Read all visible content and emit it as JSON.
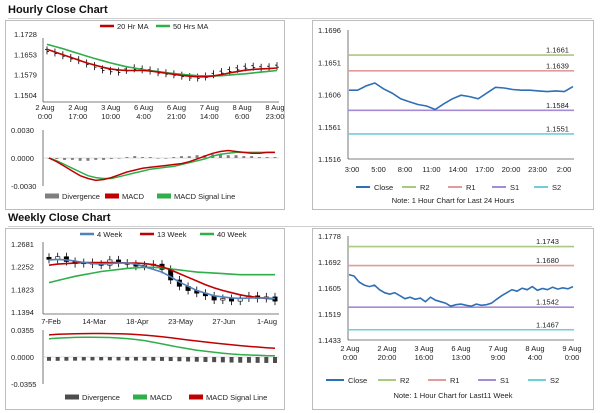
{
  "hourly": {
    "title": "Hourly Close Chart",
    "price": {
      "legend": [
        {
          "name": "20 Hr MA",
          "color": "#c00000"
        },
        {
          "name": "50 Hrs MA",
          "color": "#2fae4a"
        }
      ],
      "y_ticks": [
        "1.1728",
        "1.1653",
        "1.1579",
        "1.1504"
      ],
      "x_ticks": [
        {
          "top": "2 Aug",
          "bottom": "0:00"
        },
        {
          "top": "2 Aug",
          "bottom": "17:00"
        },
        {
          "top": "3 Aug",
          "bottom": "10:00"
        },
        {
          "top": "6 Aug",
          "bottom": "4:00"
        },
        {
          "top": "6 Aug",
          "bottom": "21:00"
        },
        {
          "top": "7 Aug",
          "bottom": "14:00"
        },
        {
          "top": "8 Aug",
          "bottom": "6:00"
        },
        {
          "top": "8 Aug",
          "bottom": "23:00"
        }
      ]
    },
    "macd": {
      "y_ticks": [
        "0.0030",
        "0.0000",
        "-0.0030"
      ],
      "legend": [
        {
          "name": "Divergence",
          "color": "#7f7f7f"
        },
        {
          "name": "MACD",
          "color": "#c00000"
        },
        {
          "name": "MACD Signal Line",
          "color": "#2fae4a"
        }
      ]
    },
    "right_chart": {
      "y_ticks": [
        "1.1696",
        "1.1651",
        "1.1606",
        "1.1561",
        "1.1516"
      ],
      "x_ticks": [
        "3:00",
        "5:00",
        "8:00",
        "11:00",
        "14:00",
        "17:00",
        "20:00",
        "23:00",
        "2:00"
      ],
      "level_labels": [
        "1.1661",
        "1.1639",
        "1.1584",
        "1.1551"
      ],
      "legend": [
        {
          "name": "Close",
          "color": "#2f6fb4"
        },
        {
          "name": "R2",
          "color": "#a8c97f"
        },
        {
          "name": "R1",
          "color": "#e39a9a"
        },
        {
          "name": "S1",
          "color": "#a58ad6"
        },
        {
          "name": "S2",
          "color": "#6fcfd6"
        }
      ],
      "note": "Note: 1 Hour Chart for Last 24 Hours"
    }
  },
  "weekly": {
    "title": "Weekly Close Chart",
    "price": {
      "legend": [
        {
          "name": "4 Week",
          "color": "#4f81bd"
        },
        {
          "name": "13 Week",
          "color": "#c00000"
        },
        {
          "name": "40 Week",
          "color": "#2fae4a"
        }
      ],
      "y_ticks": [
        "1.2681",
        "1.2252",
        "1.1823",
        "1.1394"
      ],
      "x_ticks": [
        "7-Feb",
        "14-Mar",
        "18-Apr",
        "23-May",
        "27-Jun",
        "1-Aug"
      ]
    },
    "macd": {
      "y_ticks": [
        "0.0355",
        "0.0000",
        "-0.0355"
      ],
      "legend": [
        {
          "name": "Divergence",
          "color": "#4d4d4d"
        },
        {
          "name": "MACD",
          "color": "#2fae4a"
        },
        {
          "name": "MACD Signal Line",
          "color": "#c00000"
        }
      ]
    },
    "right_chart": {
      "y_ticks": [
        "1.1778",
        "1.1692",
        "1.1605",
        "1.1519",
        "1.1433"
      ],
      "x_ticks": [
        {
          "top": "2 Aug",
          "bottom": "0:00"
        },
        {
          "top": "2 Aug",
          "bottom": "20:00"
        },
        {
          "top": "3 Aug",
          "bottom": "16:00"
        },
        {
          "top": "6 Aug",
          "bottom": "13:00"
        },
        {
          "top": "7 Aug",
          "bottom": "9:00"
        },
        {
          "top": "8 Aug",
          "bottom": "4:00"
        },
        {
          "top": "9 Aug",
          "bottom": "0:00"
        }
      ],
      "level_labels": [
        "1.1743",
        "1.1680",
        "1.1542",
        "1.1467"
      ],
      "legend": [
        {
          "name": "Close",
          "color": "#2f6fb4"
        },
        {
          "name": "R2",
          "color": "#a8c97f"
        },
        {
          "name": "R1",
          "color": "#e39a9a"
        },
        {
          "name": "S1",
          "color": "#a58ad6"
        },
        {
          "name": "S2",
          "color": "#6fcfd6"
        }
      ],
      "note": "Note: 1 Hour Chart for Last11 Week"
    }
  },
  "chart_data": [
    {
      "id": "hourly-price",
      "type": "line",
      "title": "Hourly Close Chart",
      "ylim": [
        1.1504,
        1.1728
      ],
      "series": [
        {
          "name": "Close (OHLC bars)",
          "values": [
            1.1668,
            1.166,
            1.165,
            1.164,
            1.1632,
            1.162,
            1.161,
            1.1598,
            1.1593,
            1.159,
            1.1596,
            1.1602,
            1.1598,
            1.1594,
            1.1588,
            1.1584,
            1.158,
            1.1575,
            1.157,
            1.1568,
            1.1572,
            1.158,
            1.1588,
            1.1594,
            1.16,
            1.1606,
            1.1608,
            1.1604,
            1.1606,
            1.161
          ]
        },
        {
          "name": "20 Hr MA",
          "values": [
            1.1672,
            1.1662,
            1.1652,
            1.1642,
            1.1632,
            1.1622,
            1.1614,
            1.1606,
            1.16,
            1.1596,
            1.1594,
            1.1594,
            1.1594,
            1.1592,
            1.1588,
            1.1584,
            1.158,
            1.1576,
            1.1573,
            1.1571,
            1.1571,
            1.1574,
            1.1579,
            1.1585,
            1.159,
            1.1595,
            1.1598,
            1.16,
            1.1601,
            1.1603
          ]
        },
        {
          "name": "50 Hrs MA",
          "values": [
            1.169,
            1.1682,
            1.1674,
            1.1665,
            1.1656,
            1.1647,
            1.1638,
            1.163,
            1.1622,
            1.1615,
            1.1608,
            1.1603,
            1.1598,
            1.1594,
            1.159,
            1.1586,
            1.1583,
            1.158,
            1.1577,
            1.1575,
            1.1574,
            1.1574,
            1.1575,
            1.1577,
            1.158,
            1.1582,
            1.1585,
            1.1588,
            1.1591,
            1.1594
          ]
        }
      ]
    },
    {
      "id": "hourly-macd",
      "type": "line",
      "ylim": [
        -0.003,
        0.003
      ],
      "series": [
        {
          "name": "Divergence",
          "values": [
            0.0,
            -0.0001,
            -0.0002,
            -0.0002,
            -0.0003,
            -0.0003,
            -0.0002,
            -0.0002,
            -0.0001,
            0.0,
            0.0001,
            0.0002,
            0.0001,
            0.0001,
            0.0,
            0.0,
            0.0001,
            0.0002,
            0.0002,
            0.0003,
            0.0003,
            0.0004,
            0.0004,
            0.0003,
            0.0003,
            0.0002,
            0.0002,
            0.0001,
            0.0001,
            0.0001
          ]
        },
        {
          "name": "MACD",
          "values": [
            0.0,
            -0.0004,
            -0.0009,
            -0.0014,
            -0.0019,
            -0.0022,
            -0.0024,
            -0.0023,
            -0.0021,
            -0.0018,
            -0.0015,
            -0.0013,
            -0.0011,
            -0.001,
            -0.0009,
            -0.0008,
            -0.0007,
            -0.0006,
            -0.0004,
            -0.0001,
            0.0002,
            0.0005,
            0.0007,
            0.0008,
            0.0007,
            0.0006,
            0.0005,
            0.0005,
            0.0006,
            0.0006
          ]
        },
        {
          "name": "MACD Signal Line",
          "values": [
            0.0,
            -0.0003,
            -0.0007,
            -0.0011,
            -0.0015,
            -0.0019,
            -0.0021,
            -0.0022,
            -0.0022,
            -0.002,
            -0.0018,
            -0.0016,
            -0.0014,
            -0.0012,
            -0.0011,
            -0.001,
            -0.0009,
            -0.0007,
            -0.0005,
            -0.0003,
            -0.0001,
            0.0002,
            0.0004,
            0.0005,
            0.0006,
            0.0006,
            0.0006,
            0.0006,
            0.0006,
            0.0006
          ]
        }
      ]
    },
    {
      "id": "hourly-right",
      "type": "line",
      "ylim": [
        1.1516,
        1.1696
      ],
      "levels": {
        "R2": 1.1661,
        "R1": 1.1639,
        "S1": 1.1584,
        "S2": 1.1551
      },
      "series": [
        {
          "name": "Close",
          "values": [
            1.1612,
            1.1612,
            1.1618,
            1.1622,
            1.1614,
            1.1608,
            1.16,
            1.1596,
            1.1592,
            1.159,
            1.1585,
            1.1593,
            1.16,
            1.1605,
            1.1603,
            1.16,
            1.1608,
            1.1616,
            1.1615,
            1.1613,
            1.1612,
            1.1612,
            1.1611,
            1.161,
            1.1611,
            1.161,
            1.1617
          ]
        }
      ]
    },
    {
      "id": "weekly-price",
      "type": "line",
      "title": "Weekly Close Chart",
      "ylim": [
        1.1394,
        1.2681
      ],
      "series": [
        {
          "name": "Close (candles)",
          "values": [
            1.239,
            1.244,
            1.235,
            1.231,
            1.233,
            1.23,
            1.228,
            1.238,
            1.232,
            1.23,
            1.226,
            1.228,
            1.23,
            1.22,
            1.2,
            1.188,
            1.18,
            1.175,
            1.17,
            1.162,
            1.165,
            1.16,
            1.166,
            1.17,
            1.165,
            1.168,
            1.16
          ]
        },
        {
          "name": "4 Week",
          "values": [
            1.238,
            1.239,
            1.238,
            1.236,
            1.233,
            1.231,
            1.23,
            1.231,
            1.232,
            1.232,
            1.23,
            1.225,
            1.22,
            1.215,
            1.206,
            1.196,
            1.188,
            1.18,
            1.175,
            1.17,
            1.168,
            1.166,
            1.165,
            1.166,
            1.166,
            1.166,
            1.165
          ]
        },
        {
          "name": "13 Week",
          "values": [
            1.228,
            1.23,
            1.231,
            1.232,
            1.233,
            1.233,
            1.233,
            1.233,
            1.233,
            1.232,
            1.232,
            1.231,
            1.229,
            1.225,
            1.219,
            1.212,
            1.205,
            1.198,
            1.191,
            1.185,
            1.18,
            1.176,
            1.172,
            1.169,
            1.167,
            1.165,
            1.164
          ]
        },
        {
          "name": "40 Week",
          "values": [
            1.195,
            1.199,
            1.203,
            1.207,
            1.21,
            1.213,
            1.216,
            1.218,
            1.22,
            1.222,
            1.223,
            1.224,
            1.224,
            1.223,
            1.221,
            1.219,
            1.217,
            1.215,
            1.214,
            1.213,
            1.212,
            1.211,
            1.21,
            1.21,
            1.21,
            1.21,
            1.21
          ]
        }
      ]
    },
    {
      "id": "weekly-macd",
      "type": "line",
      "ylim": [
        -0.0355,
        0.0355
      ],
      "series": [
        {
          "name": "Divergence",
          "values": [
            -0.005,
            -0.005,
            -0.0049,
            -0.0048,
            -0.0046,
            -0.0045,
            -0.0044,
            -0.0044,
            -0.0045,
            -0.0046,
            -0.0047,
            -0.0048,
            -0.0049,
            -0.0051,
            -0.0053,
            -0.0056,
            -0.0059,
            -0.0062,
            -0.0065,
            -0.0068,
            -0.0071,
            -0.0073,
            -0.0075,
            -0.0076,
            -0.0077,
            -0.0078,
            -0.0079
          ]
        },
        {
          "name": "MACD",
          "values": [
            0.024,
            0.0248,
            0.0254,
            0.0258,
            0.026,
            0.026,
            0.0258,
            0.0256,
            0.025,
            0.0242,
            0.023,
            0.0215,
            0.0195,
            0.0172,
            0.015,
            0.0128,
            0.0108,
            0.009,
            0.0075,
            0.0062,
            0.005,
            0.004,
            0.0032,
            0.0026,
            0.0022,
            0.0019,
            0.0017
          ]
        },
        {
          "name": "MACD Signal Line",
          "values": [
            0.029,
            0.0298,
            0.0302,
            0.0306,
            0.0308,
            0.0309,
            0.0309,
            0.0308,
            0.0306,
            0.0302,
            0.0296,
            0.0288,
            0.0278,
            0.0266,
            0.0252,
            0.0238,
            0.0224,
            0.021,
            0.0197,
            0.0184,
            0.0172,
            0.016,
            0.015,
            0.014,
            0.0131,
            0.0122,
            0.0114
          ]
        }
      ]
    },
    {
      "id": "weekly-right",
      "type": "line",
      "ylim": [
        1.1433,
        1.1778
      ],
      "levels": {
        "R2": 1.1743,
        "R1": 1.168,
        "S1": 1.1542,
        "S2": 1.1467
      },
      "series": [
        {
          "name": "Close",
          "values": [
            1.165,
            1.1645,
            1.1625,
            1.1615,
            1.161,
            1.1615,
            1.16,
            1.159,
            1.1585,
            1.159,
            1.158,
            1.157,
            1.1575,
            1.1568,
            1.1572,
            1.156,
            1.1575,
            1.1565,
            1.156,
            1.1555,
            1.1545,
            1.155,
            1.1552,
            1.1548,
            1.1545,
            1.1552,
            1.1548,
            1.155,
            1.1555,
            1.1568,
            1.158,
            1.159,
            1.16,
            1.1595,
            1.1605,
            1.16,
            1.161,
            1.1598,
            1.1604,
            1.16,
            1.1608,
            1.1602,
            1.1606,
            1.1603,
            1.161
          ]
        }
      ]
    }
  ]
}
